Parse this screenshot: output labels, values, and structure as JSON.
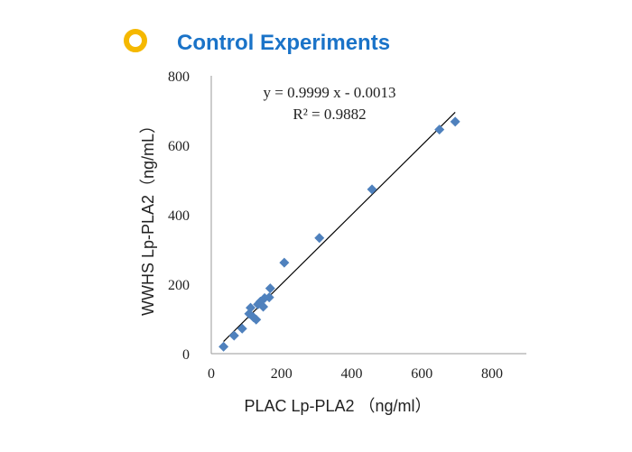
{
  "header": {
    "title": "Control Experiments",
    "ring_color": "#f5b800",
    "title_color": "#1a73c8"
  },
  "chart_data": {
    "type": "scatter",
    "xlabel": "PLAC Lp-PLA2 （ng/ml）",
    "ylabel": "WWHS Lp-PLA2（ng/mL）",
    "xlim": [
      0,
      800
    ],
    "ylim": [
      0,
      800
    ],
    "x_ticks": [
      "0",
      "200",
      "400",
      "600",
      "800"
    ],
    "y_ticks": [
      "0",
      "200",
      "400",
      "600",
      "800"
    ],
    "grid": false,
    "marker_color": "#4f81bd",
    "points": [
      {
        "x": 35,
        "y": 20
      },
      {
        "x": 65,
        "y": 52
      },
      {
        "x": 88,
        "y": 72
      },
      {
        "x": 108,
        "y": 115
      },
      {
        "x": 112,
        "y": 132
      },
      {
        "x": 120,
        "y": 105
      },
      {
        "x": 128,
        "y": 98
      },
      {
        "x": 133,
        "y": 142
      },
      {
        "x": 140,
        "y": 150
      },
      {
        "x": 148,
        "y": 135
      },
      {
        "x": 152,
        "y": 160
      },
      {
        "x": 165,
        "y": 162
      },
      {
        "x": 168,
        "y": 188
      },
      {
        "x": 208,
        "y": 262
      },
      {
        "x": 308,
        "y": 333
      },
      {
        "x": 458,
        "y": 473
      },
      {
        "x": 650,
        "y": 645
      },
      {
        "x": 695,
        "y": 668
      }
    ],
    "trendline": {
      "slope": 0.9999,
      "intercept": -0.0013,
      "x_range": [
        35,
        695
      ],
      "equation": "y = 0.9999 x - 0.0013",
      "r_squared": "R² = 0.9882"
    }
  }
}
